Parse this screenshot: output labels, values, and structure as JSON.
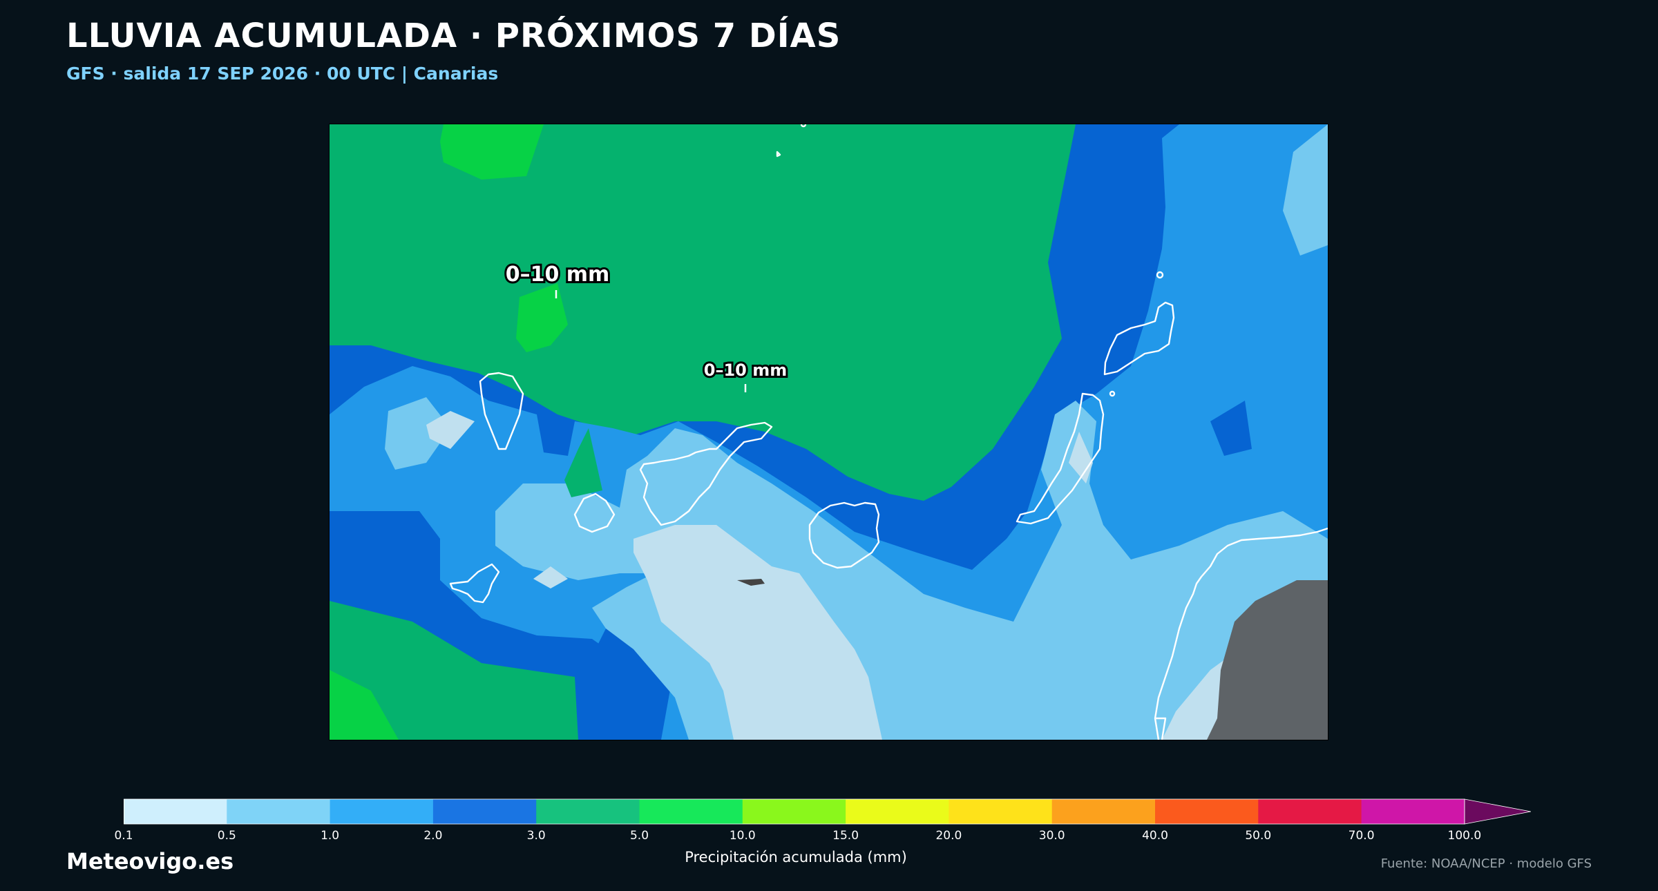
{
  "header": {
    "title": "LLUVIA ACUMULADA · PRÓXIMOS 7 DÍAS",
    "subtitle": "GFS · salida 17 SEP 2026 · 00 UTC  |  Canarias"
  },
  "map": {
    "labels": [
      "0–10 mm",
      "0–10 mm"
    ],
    "land_color": "#5e6367",
    "coast_color": "#ffffff"
  },
  "colorbar": {
    "ticks": [
      "0.1",
      "0.5",
      "1.0",
      "2.0",
      "3.0",
      "5.0",
      "10.0",
      "15.0",
      "20.0",
      "30.0",
      "40.0",
      "50.0",
      "70.0",
      "100.0"
    ],
    "colors": [
      "#cfeffd",
      "#7fd3f7",
      "#33aef7",
      "#1a75e3",
      "#17c27e",
      "#17e85a",
      "#8af71c",
      "#eafb1a",
      "#fee21a",
      "#fca11d",
      "#fb5a1d",
      "#e51945",
      "#cf16a8"
    ],
    "extend_color": "#6b0a5e",
    "label": "Precipitación acumulada (mm)"
  },
  "footer": {
    "brand": "Meteovigo.es",
    "source": "Fuente: NOAA/NCEP · modelo GFS"
  }
}
